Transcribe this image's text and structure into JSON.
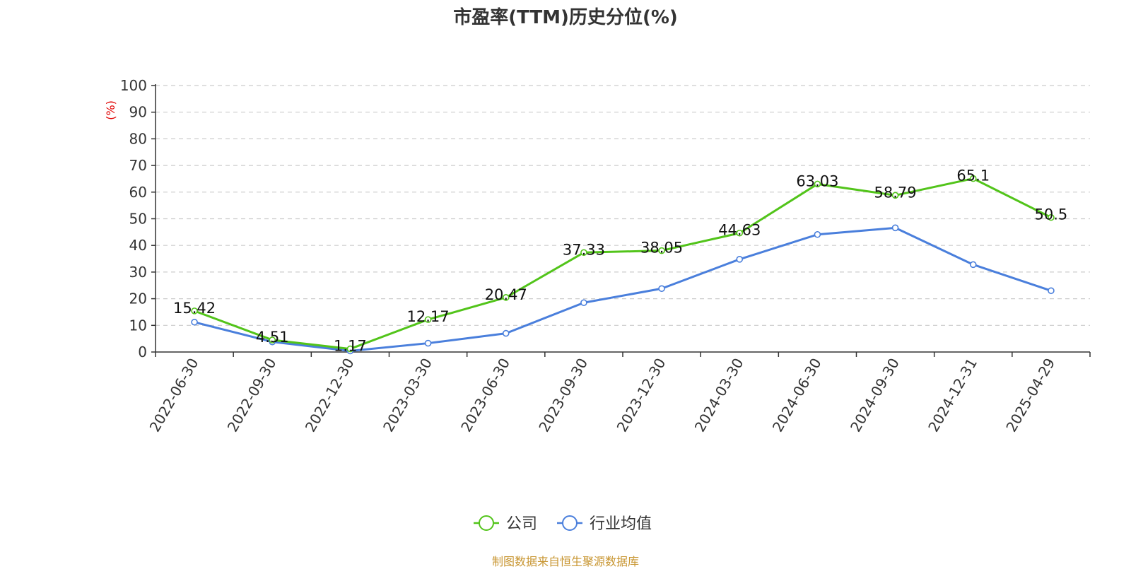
{
  "title": "市盈率(TTM)历史分位(%)",
  "source": "制图数据来自恒生聚源数据库",
  "chart_data": {
    "type": "line",
    "title": "市盈率(TTM)历史分位(%)",
    "ylabel": "(%)",
    "xlabel": "",
    "ylim": [
      0,
      100
    ],
    "yticks": [
      0,
      10,
      20,
      30,
      40,
      50,
      60,
      70,
      80,
      90,
      100
    ],
    "grid": true,
    "legend_position": "bottom-center",
    "categories": [
      "2022-06-30",
      "2022-09-30",
      "2022-12-30",
      "2023-03-30",
      "2023-06-30",
      "2023-09-30",
      "2023-12-30",
      "2024-03-30",
      "2024-06-30",
      "2024-09-30",
      "2024-12-31",
      "2025-04-29"
    ],
    "series": [
      {
        "name": "公司",
        "color": "#52c41a",
        "show_labels": true,
        "values": [
          15.42,
          4.51,
          1.17,
          12.17,
          20.47,
          37.33,
          38.05,
          44.63,
          63.03,
          58.79,
          65.1,
          50.5
        ],
        "labels": [
          "15.42",
          "4.51",
          "1.17",
          "12.17",
          "20.47",
          "37.33",
          "38.05",
          "44.63",
          "63.03",
          "58.79",
          "65.1",
          "50.5"
        ]
      },
      {
        "name": "行业均值",
        "color": "#4a7fdc",
        "show_labels": false,
        "values": [
          11.2,
          3.8,
          0.4,
          3.3,
          7.0,
          18.5,
          23.8,
          34.8,
          44.1,
          46.6,
          32.8,
          23.0
        ]
      }
    ]
  },
  "colors": {
    "axis": "#333333",
    "grid": "#cccccc",
    "ylabel": "#e00000",
    "source": "#c89632"
  }
}
